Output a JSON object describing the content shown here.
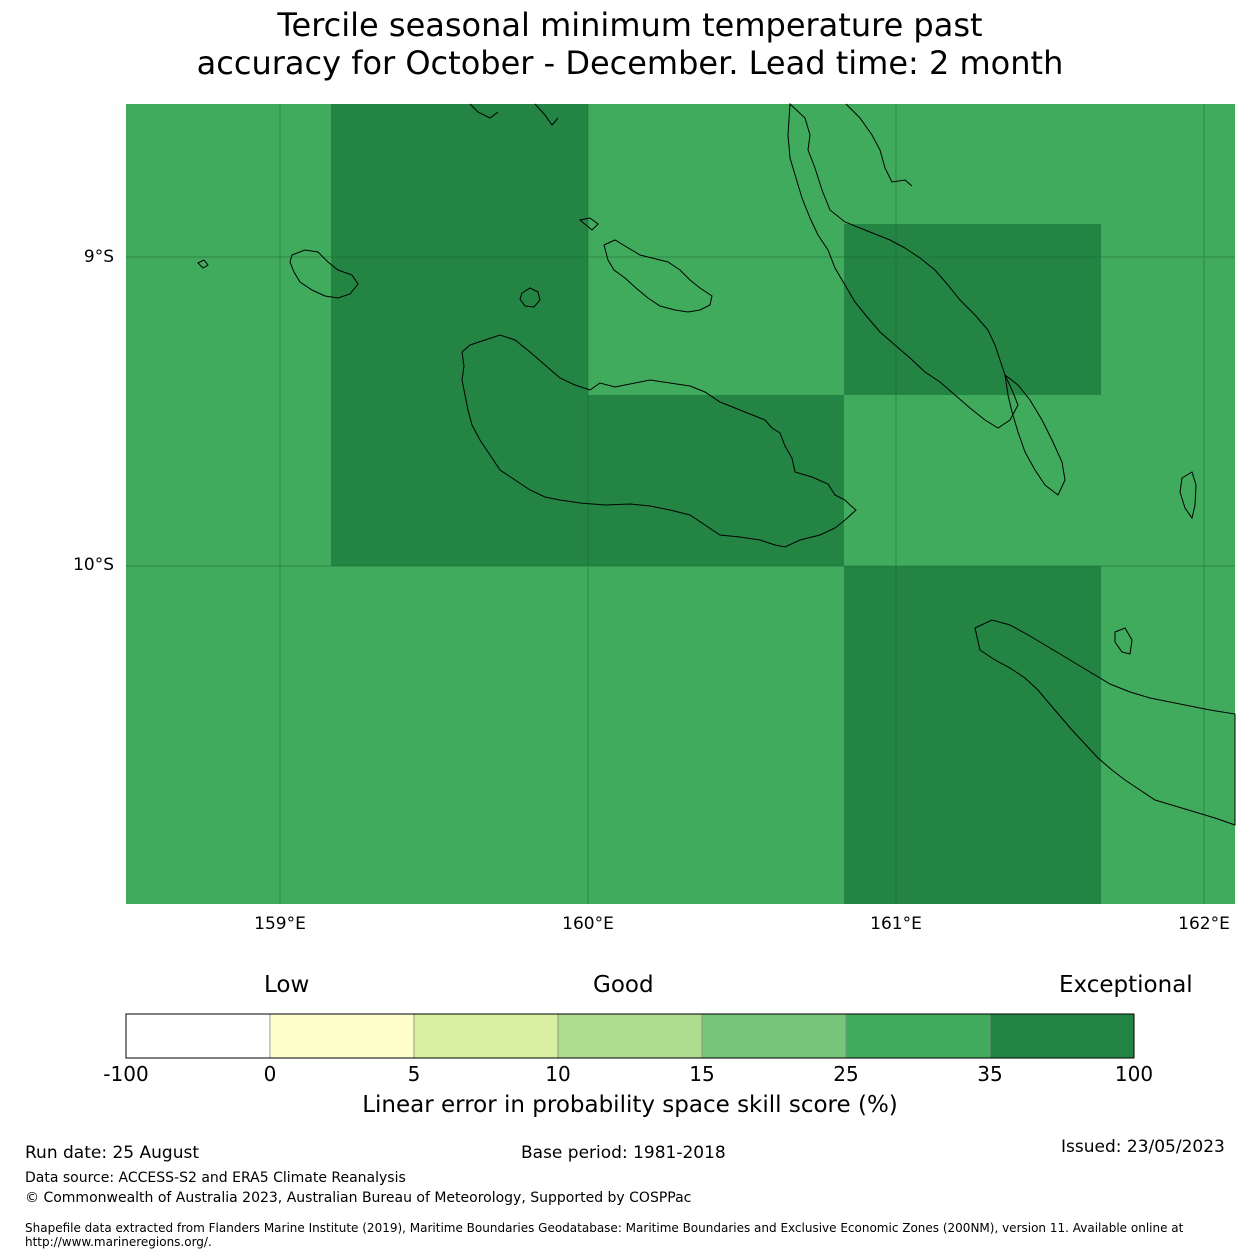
{
  "title_line1": "Tercile seasonal minimum temperature past",
  "title_line2": "accuracy for October - December. Lead time: 2 month",
  "map": {
    "y_ticks": [
      "9°S",
      "10°S"
    ],
    "x_ticks": [
      "159°E",
      "160°E",
      "161°E",
      "162°E"
    ],
    "colors": {
      "band_25_35": "#41ab5d",
      "band_35_100": "#238443",
      "coastline": "#000000",
      "grid": "#1a6b35"
    },
    "grid_cells": [
      {
        "lon_range": [
          159.17,
          160.0
        ],
        "lat_range": [
          -10.0,
          -8.5
        ],
        "band": "35-100"
      },
      {
        "lon_range": [
          160.0,
          160.83
        ],
        "lat_range": [
          -10.0,
          -9.45
        ],
        "band": "35-100"
      },
      {
        "lon_range": [
          160.83,
          161.67
        ],
        "lat_range": [
          -9.45,
          -8.9
        ],
        "band": "35-100"
      },
      {
        "lon_range": [
          160.83,
          161.67
        ],
        "lat_range": [
          -11.1,
          -10.0
        ],
        "band": "35-100"
      }
    ]
  },
  "colorbar": {
    "labels": {
      "low": "Low",
      "good": "Good",
      "exceptional": "Exceptional"
    },
    "ticks": [
      "-100",
      "0",
      "5",
      "10",
      "15",
      "25",
      "35",
      "100"
    ],
    "colors": [
      "#ffffff",
      "#ffffcc",
      "#d9f0a3",
      "#addd8e",
      "#78c679",
      "#41ab5d",
      "#238443"
    ],
    "title": "Linear error in probability space skill score (%)"
  },
  "footer": {
    "run_date": "Run date: 25 August",
    "base_period": "Base period: 1981-2018",
    "issued": "Issued: 23/05/2023",
    "data_source": "Data source: ACCESS-S2 and ERA5 Climate Reanalysis",
    "copyright": "© Commonwealth of Australia 2023, Australian Bureau of Meteorology, Supported by COSPPac",
    "shapefile_line1": "Shapefile data extracted from Flanders Marine Institute (2019), Maritime Boundaries Geodatabase: Maritime Boundaries and Exclusive Economic Zones (200NM), version 11. Available online at",
    "shapefile_line2": "http://www.marineregions.org/."
  }
}
